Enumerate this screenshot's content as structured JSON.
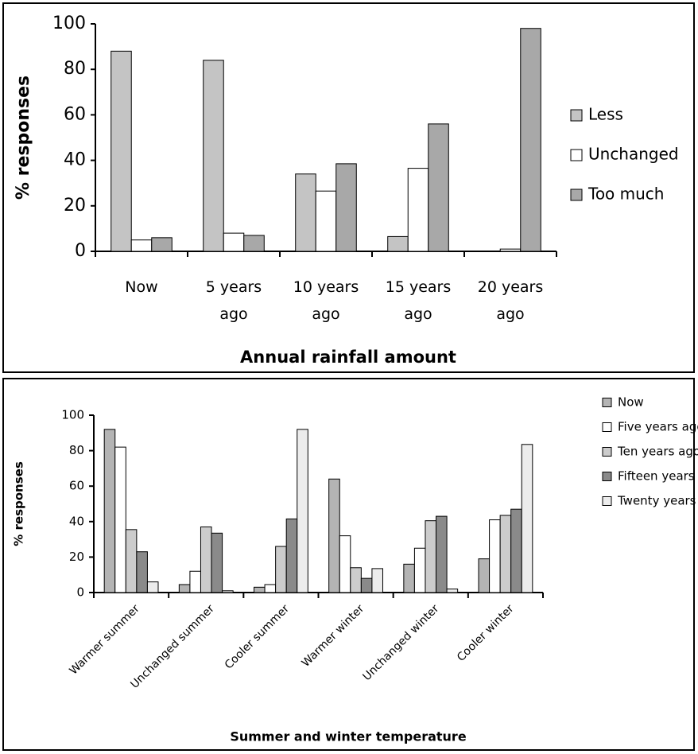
{
  "chart_data": [
    {
      "type": "bar",
      "xlabel": "Annual rainfall amount",
      "ylabel": "% responses",
      "categories": [
        "Now",
        "5 years ago",
        "10 years ago",
        "15 years ago",
        "20 years ago"
      ],
      "series": [
        {
          "name": "Less",
          "color": "#c4c4c4",
          "values": [
            88,
            84,
            34,
            6.5,
            0
          ]
        },
        {
          "name": "Unchanged",
          "color": "#ffffff",
          "values": [
            5,
            8,
            26.5,
            36.5,
            1
          ]
        },
        {
          "name": "Too much",
          "color": "#a8a8a8",
          "values": [
            6,
            7,
            38.5,
            56,
            98
          ]
        }
      ],
      "ylim": [
        0,
        100
      ],
      "yticks": [
        0,
        20,
        40,
        60,
        80,
        100
      ],
      "legend": "right"
    },
    {
      "type": "bar",
      "xlabel": "Summer and winter temperature",
      "ylabel": "% responses",
      "categories": [
        "Warmer summer",
        "Unchanged summer",
        "Cooler summer",
        "Warmer winter",
        "Unchanged winter",
        "Cooler winter"
      ],
      "series": [
        {
          "name": "Now",
          "color": "#b4b4b4",
          "values": [
            92,
            4.5,
            3,
            64,
            16,
            19
          ]
        },
        {
          "name": "Five years ago",
          "color": "#ffffff",
          "values": [
            82,
            12,
            4.5,
            32,
            25,
            41
          ]
        },
        {
          "name": "Ten years ago",
          "color": "#cccccc",
          "values": [
            35.5,
            37,
            26,
            14,
            40.5,
            43.5
          ]
        },
        {
          "name": "Fifteen years ago",
          "color": "#8a8a8a",
          "values": [
            23,
            33.5,
            41.5,
            8,
            43,
            47
          ]
        },
        {
          "name": "Twenty years ago",
          "color": "#ececec",
          "values": [
            6,
            1,
            92,
            13.5,
            2,
            83.5
          ]
        }
      ],
      "ylim": [
        0,
        100
      ],
      "yticks": [
        0,
        20,
        40,
        60,
        80,
        100
      ],
      "legend": "right"
    }
  ]
}
